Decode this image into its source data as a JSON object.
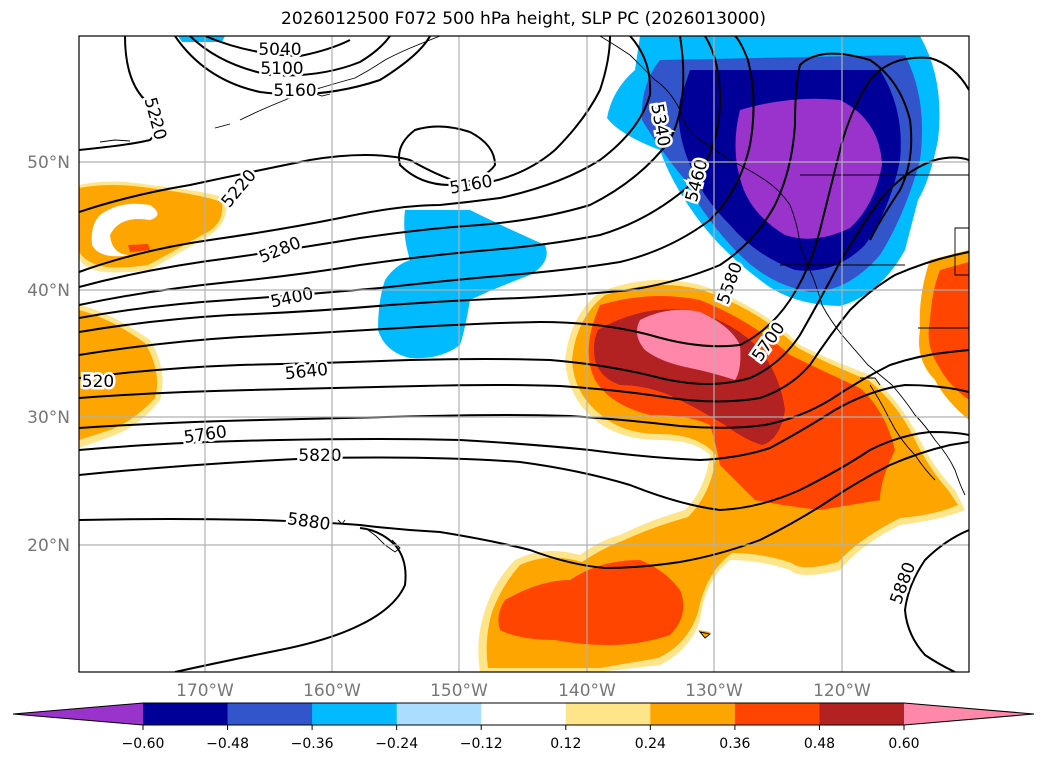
{
  "title": "2026012500 F072 500 hPa height, SLP PC (2026013000)",
  "lat_labels": [
    "50°N",
    "40°N",
    "30°N",
    "20°N"
  ],
  "lon_labels": [
    "170°W",
    "160°W",
    "150°W",
    "140°W",
    "130°W",
    "120°W"
  ],
  "contour_labels": [
    "5040",
    "5100",
    "5160",
    "5220",
    "5220",
    "5160",
    "5340",
    "5460",
    "5280",
    "5400",
    "5580",
    "5700",
    "5640",
    "520",
    "5760",
    "5820",
    "5880",
    "5880"
  ],
  "colorbar": {
    "ticks": [
      "−0.60",
      "−0.48",
      "−0.36",
      "−0.24",
      "−0.12",
      "0.12",
      "0.24",
      "0.36",
      "0.48",
      "0.60"
    ],
    "colors": [
      "#9933cc",
      "#000099",
      "#3355cc",
      "#00bbff",
      "#aaddff",
      "#ffffff",
      "#ffe58a",
      "#ffa500",
      "#ff4500",
      "#b22222",
      "#ff88aa"
    ]
  },
  "colors": {
    "purple": "#9933cc",
    "navy": "#000099",
    "blue": "#3355cc",
    "cyan": "#00bbff",
    "lightblue": "#aaddff",
    "lightyellow": "#ffe58a",
    "orange": "#ffa500",
    "redorange": "#ff4500",
    "darkred": "#b22222",
    "pink": "#ff88aa"
  }
}
